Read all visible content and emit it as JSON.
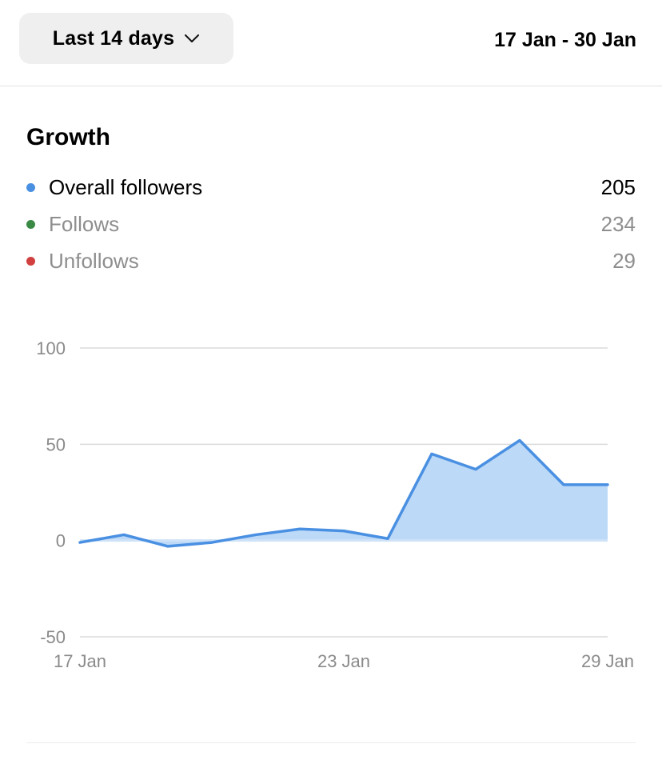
{
  "header": {
    "range_selector": {
      "label": "Last 14 days",
      "icon": "chevron-down-icon"
    },
    "date_range": "17 Jan - 30 Jan"
  },
  "growth": {
    "title": "Growth",
    "legend": [
      {
        "label": "Overall followers",
        "value": "205",
        "color": "#4a90e2",
        "active": true
      },
      {
        "label": "Follows",
        "value": "234",
        "color": "#3a8a45",
        "active": false
      },
      {
        "label": "Unfollows",
        "value": "29",
        "color": "#d13f3f",
        "active": false
      }
    ]
  },
  "chart_data": {
    "type": "area",
    "x": [
      "17 Jan",
      "18 Jan",
      "19 Jan",
      "20 Jan",
      "21 Jan",
      "22 Jan",
      "23 Jan",
      "24 Jan",
      "25 Jan",
      "26 Jan",
      "27 Jan",
      "28 Jan",
      "29 Jan"
    ],
    "series": [
      {
        "name": "Overall followers",
        "values": [
          -1,
          3,
          -3,
          -1,
          3,
          6,
          5,
          1,
          45,
          37,
          52,
          29,
          29
        ],
        "color": "#4a90e2",
        "fill": "#bcd9f7"
      }
    ],
    "x_tick_labels": [
      "17 Jan",
      "23 Jan",
      "29 Jan"
    ],
    "y_tick_labels": [
      "100",
      "50",
      "0",
      "-50"
    ],
    "y_ticks": [
      100,
      50,
      0,
      -50
    ],
    "ylim": [
      -50,
      100
    ],
    "grid": true,
    "legend": "none"
  }
}
